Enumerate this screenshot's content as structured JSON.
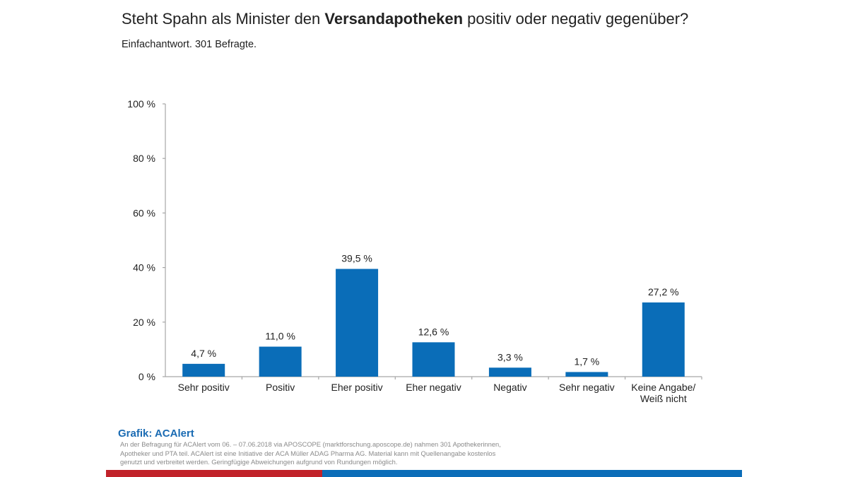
{
  "header": {
    "title_pre": "Steht Spahn als Minister den ",
    "title_bold": "Versandapotheken",
    "title_post": " positiv oder negativ gegenüber?",
    "subtitle": "Einfachantwort. 301 Befragte."
  },
  "footer": {
    "source_title": "Grafik: ACAlert",
    "source_text": "An der Befragung für ACAlert vom 06. – 07.06.2018 via APOSCOPE (marktforschung.aposcope.de) nahmen 301 Apothekerinnen, Apotheker und PTA teil. ACAlert ist eine Initiative der ACA Müller ADAG Pharma AG. Material kann mit Quellenangabe kostenlos genutzt und verbreitet werden. Geringfügige Abweichungen aufgrund von Rundungen möglich.",
    "stripe_colors": [
      "#c1222a",
      "#0b6db8"
    ]
  },
  "chart_data": {
    "type": "bar",
    "title": "Steht Spahn als Minister den Versandapotheken positiv oder negativ gegenüber?",
    "subtitle": "Einfachantwort. 301 Befragte.",
    "xlabel": "",
    "ylabel": "",
    "categories": [
      [
        "Sehr positiv"
      ],
      [
        "Positiv"
      ],
      [
        "Eher positiv"
      ],
      [
        "Eher negativ"
      ],
      [
        "Negativ"
      ],
      [
        "Sehr negativ"
      ],
      [
        "Keine Angabe/",
        "Weiß nicht"
      ]
    ],
    "values": [
      4.7,
      11.0,
      39.5,
      12.6,
      3.3,
      1.7,
      27.2
    ],
    "value_labels": [
      "4,7 %",
      "11,0 %",
      "39,5 %",
      "12,6 %",
      "3,3 %",
      "1,7 %",
      "27,2 %"
    ],
    "ylim": [
      0,
      100
    ],
    "yticks": [
      0,
      20,
      40,
      60,
      80,
      100
    ],
    "ytick_labels": [
      "0 %",
      "20 %",
      "40 %",
      "60 %",
      "80 %",
      "100 %"
    ],
    "grid": false,
    "legend": "none",
    "bar_color": "#0a6db8"
  }
}
